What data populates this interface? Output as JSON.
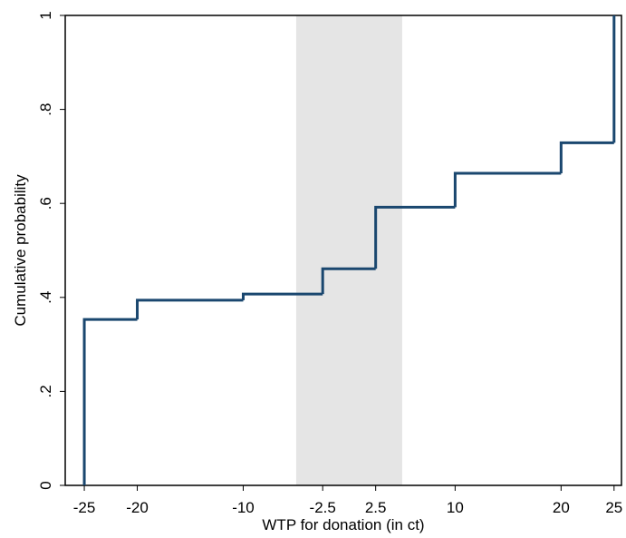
{
  "chart_data": {
    "type": "step",
    "x_label": "WTP for donation (in ct)",
    "y_label": "Cumulative probability",
    "x": [
      -25,
      -20,
      -10,
      -2.5,
      2.5,
      10,
      20,
      25
    ],
    "values": [
      0.353,
      0.394,
      0.407,
      0.461,
      0.592,
      0.664,
      0.729,
      1
    ],
    "color": "#1a476f",
    "shaded_region": [
      -5,
      5
    ],
    "shade_color": "#e5e5e5",
    "xlim": [
      -26.8,
      25.7
    ],
    "ylim": [
      0,
      1
    ],
    "xticks": [
      -25,
      -20,
      -10,
      -2.5,
      2.5,
      10,
      20,
      25
    ],
    "yticks": [
      0,
      {
        "value": 0.2,
        "label": ".2"
      },
      {
        "value": 0.4,
        "label": ".4"
      },
      {
        "value": 0.6,
        "label": ".6"
      },
      {
        "value": 0.8,
        "label": ".8"
      },
      1
    ]
  }
}
